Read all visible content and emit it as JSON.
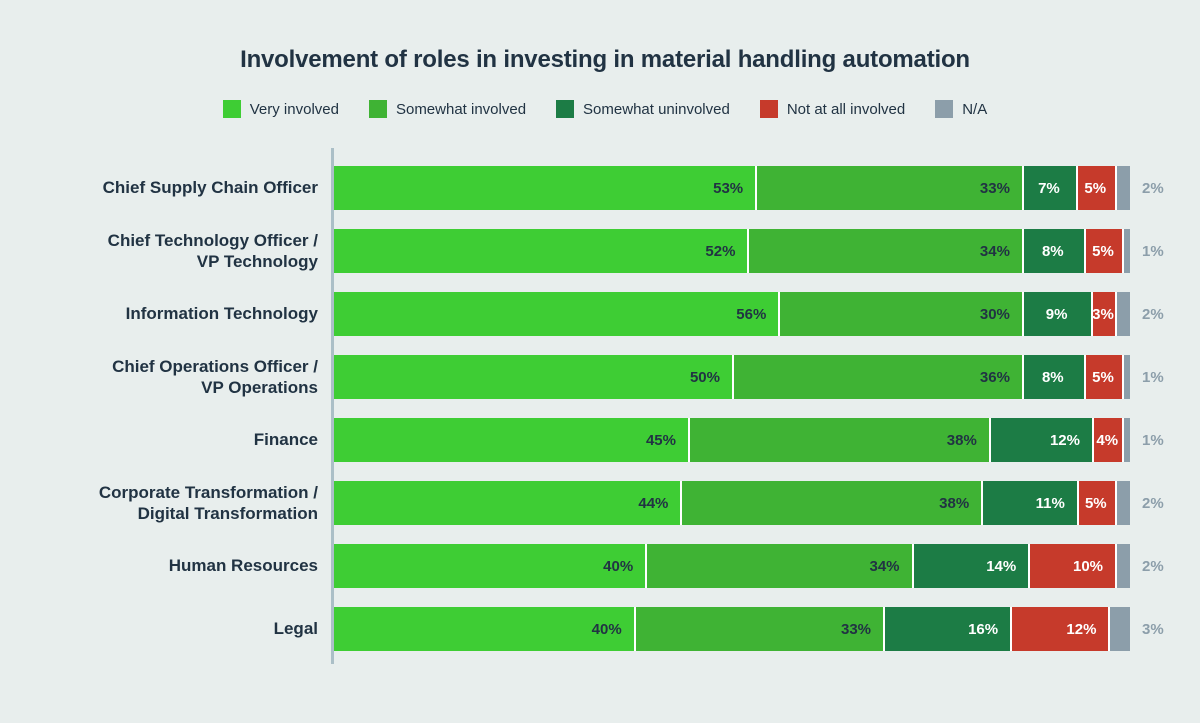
{
  "chart_data": {
    "type": "bar",
    "orientation": "horizontal",
    "stacked": true,
    "title": "Involvement of roles in investing in material handling automation",
    "value_suffix": "%",
    "xlim": [
      0,
      100
    ],
    "legend_position": "top",
    "grid": false,
    "categories": [
      "Chief Supply Chain Officer",
      "Chief Technology Officer /\nVP Technology",
      "Information Technology",
      "Chief Operations Officer /\nVP Operations",
      "Finance",
      "Corporate Transformation /\nDigital Transformation",
      "Human Resources",
      "Legal"
    ],
    "series": [
      {
        "name": "Very involved",
        "color": "#3ECD34",
        "label_style": "inside-dark",
        "values": [
          53,
          52,
          56,
          50,
          45,
          44,
          40,
          40
        ]
      },
      {
        "name": "Somewhat involved",
        "color": "#3FB334",
        "label_style": "inside-dark",
        "values": [
          33,
          34,
          30,
          36,
          38,
          38,
          34,
          33
        ]
      },
      {
        "name": "Somewhat uninvolved",
        "color": "#1C7C45",
        "label_style": "inside-light",
        "values": [
          7,
          8,
          9,
          8,
          12,
          11,
          14,
          16
        ]
      },
      {
        "name": "Not at all involved",
        "color": "#C63A2B",
        "label_style": "inside-light",
        "values": [
          5,
          5,
          3,
          5,
          4,
          5,
          10,
          12
        ]
      },
      {
        "name": "N/A",
        "color": "#8C9EAA",
        "label_style": "outside",
        "values": [
          2,
          1,
          2,
          1,
          1,
          2,
          2,
          3
        ]
      }
    ]
  },
  "colors": {
    "background": "#E8EEED",
    "axis_line": "#ABBFC7",
    "title_text": "#213343",
    "category_text": "#213343",
    "inside_label_dark": "#213343",
    "inside_label_light": "#FFFFFF",
    "outside_label": "#8C9EAA",
    "separator": "#FFFFFF"
  }
}
